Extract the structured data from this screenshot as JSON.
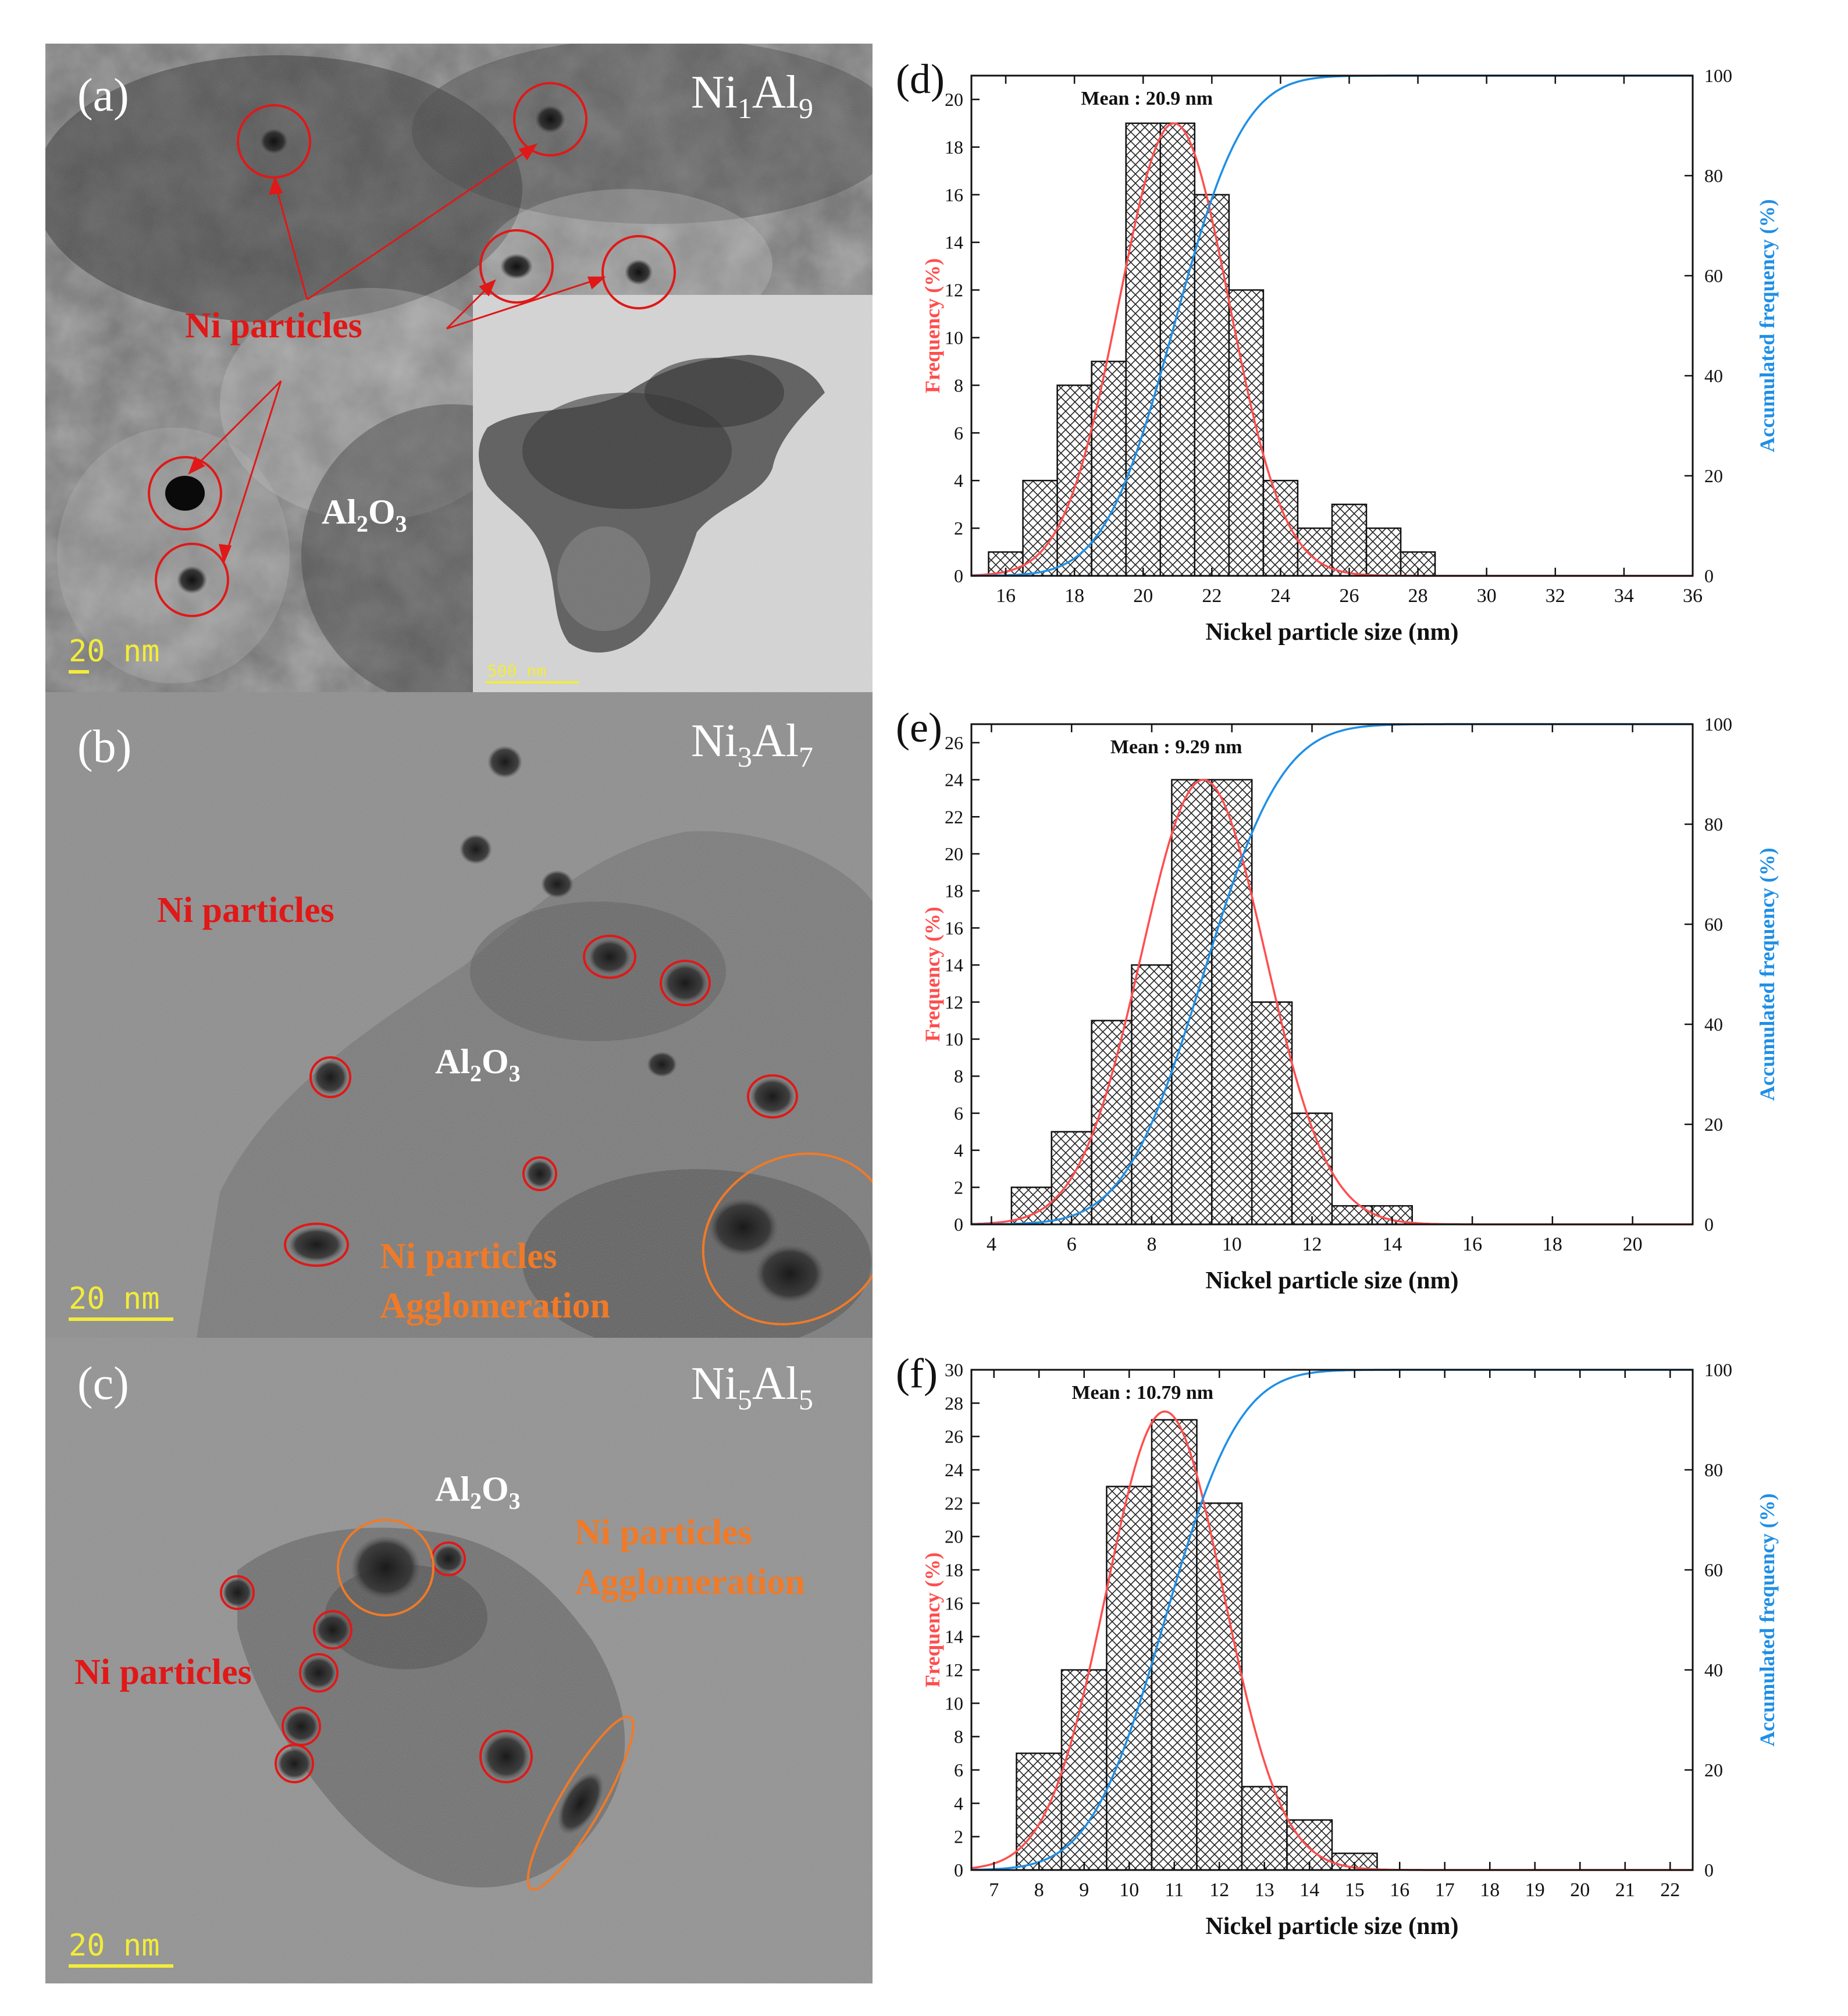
{
  "panels": {
    "a": {
      "label": "(a)",
      "sample": [
        "Ni",
        "1",
        "Al",
        "9"
      ],
      "annotations": [
        {
          "text": "Ni particles",
          "color": "red"
        },
        {
          "text": "Al",
          "sub": "2",
          "tail": "O",
          "sub2": "3",
          "color": "white"
        }
      ],
      "scale_bar": "20 nm",
      "inset_scale_bar": "500 nm"
    },
    "b": {
      "label": "(b)",
      "sample": [
        "Ni",
        "3",
        "Al",
        "7"
      ],
      "annotations": [
        {
          "text": "Ni particles",
          "color": "red"
        },
        {
          "text": "Al",
          "sub": "2",
          "tail": "O",
          "sub2": "3",
          "color": "white"
        },
        {
          "text": "Ni particles",
          "color": "orange"
        },
        {
          "text": "Agglomeration",
          "color": "orange"
        }
      ],
      "scale_bar": "20 nm"
    },
    "c": {
      "label": "(c)",
      "sample": [
        "Ni",
        "5",
        "Al",
        "5"
      ],
      "annotations": [
        {
          "text": "Al",
          "sub": "2",
          "tail": "O",
          "sub2": "3",
          "color": "white"
        },
        {
          "text": "Ni particles",
          "color": "orange"
        },
        {
          "text": "Agglomeration",
          "color": "orange"
        },
        {
          "text": "Ni particles",
          "color": "red"
        }
      ],
      "scale_bar": "20 nm"
    }
  },
  "colors": {
    "frequency_curve": "#ff4d4d",
    "cumulative_curve": "#1f8fe6",
    "red_circle": "#e01818",
    "orange_circle": "#f07a28"
  },
  "chart_data": [
    {
      "type": "bar",
      "panel_label": "(d)",
      "xlabel": "Nickel particle size (nm)",
      "ylabel_left": "Frequency (%)",
      "ylabel_right": "Accumulated frequency (%)",
      "mean_label": "Mean : 20.9 nm",
      "mean": 20.9,
      "sigma": 1.6,
      "peak": 19,
      "xlim": [
        15,
        36
      ],
      "xticks": [
        16,
        18,
        20,
        22,
        24,
        26,
        28,
        30,
        32,
        34,
        36
      ],
      "ylim_left": [
        0,
        21
      ],
      "yticks_left": [
        0,
        2,
        4,
        6,
        8,
        10,
        12,
        14,
        16,
        18,
        20
      ],
      "ylim_right": [
        0,
        100
      ],
      "yticks_right": [
        0,
        20,
        40,
        60,
        80,
        100
      ],
      "categories": [
        16,
        17,
        18,
        19,
        20,
        21,
        22,
        23,
        24,
        25,
        26,
        27,
        28
      ],
      "values": [
        1,
        4,
        8,
        9,
        19,
        19,
        16,
        12,
        4,
        2,
        3,
        2,
        1
      ]
    },
    {
      "type": "bar",
      "panel_label": "(e)",
      "xlabel": "Nickel particle size (nm)",
      "ylabel_left": "Frequency (%)",
      "ylabel_right": "Accumulated frequency (%)",
      "mean_label": "Mean : 9.29 nm",
      "mean": 9.29,
      "sigma": 1.55,
      "peak": 24,
      "xlim": [
        3.5,
        21.5
      ],
      "xticks": [
        4,
        6,
        8,
        10,
        12,
        14,
        16,
        18,
        20
      ],
      "ylim_left": [
        0,
        27
      ],
      "yticks_left": [
        0,
        2,
        4,
        6,
        8,
        10,
        12,
        14,
        16,
        18,
        20,
        22,
        24,
        26
      ],
      "ylim_right": [
        0,
        100
      ],
      "yticks_right": [
        0,
        20,
        40,
        60,
        80,
        100
      ],
      "categories": [
        5,
        6,
        7,
        8,
        9,
        10,
        11,
        12,
        13,
        14
      ],
      "values": [
        2,
        5,
        11,
        14,
        24,
        24,
        12,
        6,
        1,
        1
      ]
    },
    {
      "type": "bar",
      "panel_label": "(f)",
      "xlabel": "Nickel particle size (nm)",
      "ylabel_left": "Frequency (%)",
      "ylabel_right": "Accumulated frequency (%)",
      "mean_label": "Mean : 10.79 nm",
      "mean": 10.79,
      "sigma": 1.3,
      "peak": 27.5,
      "xlim": [
        6.5,
        22.5
      ],
      "xticks": [
        7,
        8,
        9,
        10,
        11,
        12,
        13,
        14,
        15,
        16,
        17,
        18,
        19,
        20,
        21,
        22
      ],
      "ylim_left": [
        0,
        30
      ],
      "yticks_left": [
        0,
        2,
        4,
        6,
        8,
        10,
        12,
        14,
        16,
        18,
        20,
        22,
        24,
        26,
        28,
        30
      ],
      "ylim_right": [
        0,
        100
      ],
      "yticks_right": [
        0,
        20,
        40,
        60,
        80,
        100
      ],
      "categories": [
        8,
        9,
        10,
        11,
        12,
        13,
        14,
        15
      ],
      "values": [
        7,
        12,
        23,
        27,
        22,
        5,
        3,
        1
      ]
    }
  ]
}
